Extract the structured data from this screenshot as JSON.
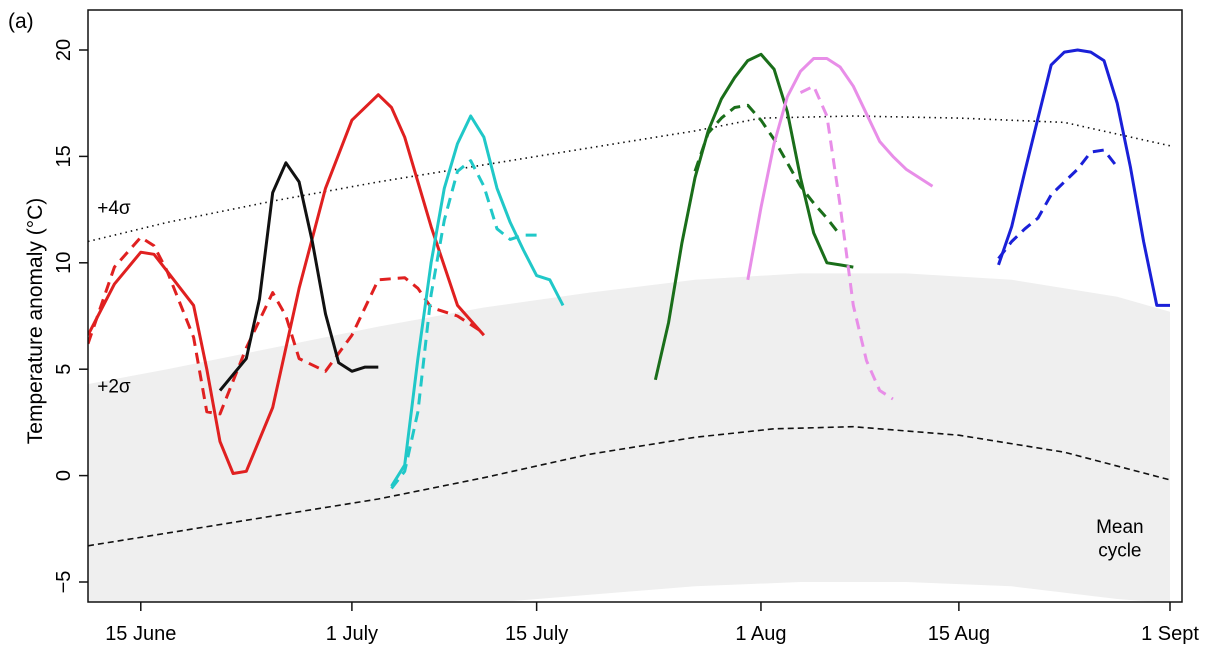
{
  "panel_label": "(a)",
  "chart_data": {
    "type": "line",
    "title": "",
    "ylabel": "Temperature anomaly (°C)",
    "xlabel": "",
    "x_unit": "day of year",
    "xlim": [
      162,
      245
    ],
    "ylim": [
      -6,
      22
    ],
    "x_ticks": [
      {
        "x": 166,
        "label": "15 June"
      },
      {
        "x": 182,
        "label": "1 July"
      },
      {
        "x": 196,
        "label": "15 July"
      },
      {
        "x": 213,
        "label": "1 Aug"
      },
      {
        "x": 228,
        "label": "15 Aug"
      },
      {
        "x": 244,
        "label": "1 Sept"
      }
    ],
    "y_ticks": [
      {
        "y": -5,
        "label": "−5"
      },
      {
        "y": 0,
        "label": "0"
      },
      {
        "y": 5,
        "label": "5"
      },
      {
        "y": 10,
        "label": "10"
      },
      {
        "y": 15,
        "label": "15"
      },
      {
        "y": 20,
        "label": "20"
      }
    ],
    "annotations": [
      {
        "text": "+4σ",
        "x": 162.7,
        "y": 12.3
      },
      {
        "text": "+2σ",
        "x": 162.7,
        "y": 3.9
      },
      {
        "text": "Mean",
        "x": 240.2,
        "y": -2.7
      },
      {
        "text": "cycle",
        "x": 240.2,
        "y": -3.8
      }
    ],
    "band": {
      "upper_x": [
        162,
        168,
        176,
        184,
        192,
        200,
        208,
        216,
        224,
        232,
        240,
        244
      ],
      "upper_y": [
        4.3,
        5.0,
        6.0,
        7.0,
        7.9,
        8.6,
        9.2,
        9.5,
        9.5,
        9.2,
        8.4,
        7.7
      ],
      "lower_x": [
        162,
        176,
        192,
        208,
        216,
        224,
        232,
        240,
        244
      ],
      "lower_y": [
        -6,
        -6,
        -6,
        -5.2,
        -5.0,
        -5.0,
        -5.2,
        -5.8,
        -6
      ]
    },
    "reference_lines": [
      {
        "name": "+4σ",
        "style": "dotted",
        "x": [
          162,
          168,
          176,
          184,
          192,
          200,
          208,
          213,
          220,
          228,
          236,
          244
        ],
        "y": [
          11.0,
          11.9,
          12.9,
          13.8,
          14.6,
          15.4,
          16.2,
          16.8,
          16.9,
          16.8,
          16.6,
          15.5
        ]
      },
      {
        "name": "Mean cycle",
        "style": "dashed",
        "x": [
          162,
          168,
          176,
          184,
          192,
          200,
          208,
          214,
          220,
          228,
          236,
          244
        ],
        "y": [
          -3.3,
          -2.7,
          -1.9,
          -1.1,
          -0.1,
          1.0,
          1.8,
          2.2,
          2.3,
          1.9,
          1.1,
          -0.2
        ]
      },
      {
        "name": "+2σ",
        "style": "none",
        "x": [],
        "y": []
      }
    ],
    "series": [
      {
        "color": "#e02020",
        "style": "solid",
        "x": [
          162,
          164,
          166,
          167,
          168,
          170,
          171,
          172,
          173,
          174,
          176,
          178,
          180,
          182,
          184,
          185,
          186,
          188,
          190,
          192
        ],
        "y": [
          6.6,
          9.0,
          10.5,
          10.4,
          9.6,
          8.0,
          5.0,
          1.6,
          0.1,
          0.2,
          3.2,
          8.8,
          13.5,
          16.7,
          17.9,
          17.3,
          15.9,
          11.7,
          8.0,
          6.6
        ]
      },
      {
        "color": "#e02020",
        "style": "dashed",
        "x": [
          162,
          164,
          166,
          167,
          168,
          170,
          171,
          172,
          174,
          176,
          177,
          178,
          180,
          182,
          184,
          186,
          187,
          188,
          190,
          192
        ],
        "y": [
          6.2,
          9.8,
          11.2,
          10.8,
          9.6,
          6.5,
          3.0,
          2.9,
          6.0,
          8.6,
          7.5,
          5.5,
          4.9,
          6.6,
          9.2,
          9.3,
          8.8,
          7.9,
          7.5,
          6.7
        ]
      },
      {
        "color": "#111111",
        "style": "solid",
        "x": [
          172,
          174,
          175,
          176,
          177,
          178,
          179,
          180,
          181,
          182,
          183,
          184
        ],
        "y": [
          4.0,
          5.5,
          8.3,
          13.3,
          14.7,
          13.8,
          11.0,
          7.6,
          5.3,
          4.9,
          5.1,
          5.1
        ]
      },
      {
        "color": "#20c8c8",
        "style": "solid",
        "x": [
          185,
          186,
          187,
          188,
          189,
          190,
          191,
          192,
          193,
          194,
          195,
          196,
          197,
          198
        ],
        "y": [
          -0.5,
          0.5,
          5.5,
          10.0,
          13.5,
          15.6,
          16.9,
          15.9,
          13.5,
          11.9,
          10.6,
          9.4,
          9.2,
          8.0
        ]
      },
      {
        "color": "#20c8c8",
        "style": "dashed",
        "x": [
          185,
          186,
          187,
          188,
          189,
          190,
          191,
          192,
          193,
          194,
          195,
          196
        ],
        "y": [
          -0.6,
          0.2,
          3.0,
          8.5,
          12.0,
          14.3,
          14.8,
          13.6,
          11.6,
          11.1,
          11.3,
          11.3
        ]
      },
      {
        "color": "#1a6e1a",
        "style": "solid",
        "x": [
          205,
          206,
          207,
          208,
          209,
          210,
          211,
          212,
          213,
          214,
          215,
          216,
          217,
          218,
          219,
          220
        ],
        "y": [
          4.5,
          7.2,
          10.9,
          14.0,
          16.2,
          17.7,
          18.7,
          19.5,
          19.8,
          19.1,
          17.1,
          14.0,
          11.4,
          10.0,
          9.9,
          9.8
        ]
      },
      {
        "color": "#1a6e1a",
        "style": "dashed",
        "x": [
          208,
          209,
          210,
          211,
          212,
          213,
          214,
          215,
          216,
          217,
          218,
          219
        ],
        "y": [
          14.3,
          16.1,
          16.8,
          17.3,
          17.4,
          16.7,
          15.8,
          14.7,
          13.6,
          12.8,
          12.1,
          11.3
        ]
      },
      {
        "color": "#e88ee8",
        "style": "solid",
        "x": [
          212,
          213,
          214,
          215,
          216,
          217,
          218,
          219,
          220,
          221,
          222,
          223,
          224,
          225,
          226
        ],
        "y": [
          9.2,
          12.6,
          15.6,
          17.8,
          19.0,
          19.6,
          19.6,
          19.2,
          18.3,
          17.0,
          15.7,
          15.0,
          14.4,
          14.0,
          13.6
        ]
      },
      {
        "color": "#e88ee8",
        "style": "dashed",
        "x": [
          216,
          217,
          218,
          219,
          220,
          221,
          222,
          223
        ],
        "y": [
          18.0,
          18.3,
          16.9,
          12.7,
          8.0,
          5.4,
          4.0,
          3.6
        ]
      },
      {
        "color": "#1a20d8",
        "style": "solid",
        "x": [
          231,
          232,
          233,
          234,
          235,
          236,
          237,
          238,
          239,
          240,
          241,
          242,
          243,
          244
        ],
        "y": [
          9.9,
          11.7,
          14.3,
          16.8,
          19.3,
          19.9,
          20.0,
          19.9,
          19.5,
          17.5,
          14.5,
          11.0,
          8.0,
          8.0
        ]
      },
      {
        "color": "#1a20d8",
        "style": "dashed",
        "x": [
          231,
          232,
          233,
          234,
          235,
          236,
          237,
          238,
          239,
          240
        ],
        "y": [
          10.2,
          11.0,
          11.6,
          12.1,
          13.2,
          13.8,
          14.4,
          15.2,
          15.3,
          14.5
        ]
      }
    ]
  }
}
